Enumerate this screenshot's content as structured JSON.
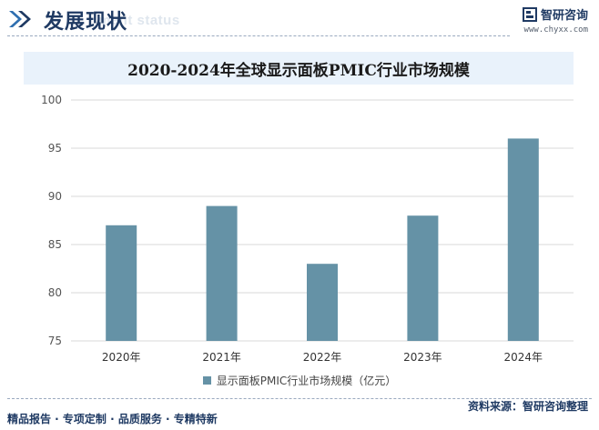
{
  "header": {
    "title": "发展现状",
    "subtitle": "ment status",
    "brand_name": "智研咨询",
    "brand_url": "www.chyxx.com"
  },
  "legend": {
    "label": "显示面板PMIC行业市场规模（亿元）"
  },
  "footer": {
    "left": "精品报告 · 专项定制 · 品质服务 · 专精特新",
    "right": "资料来源：智研咨询整理"
  },
  "colors": {
    "bar": "#6592a6",
    "title_bg": "#e9f2fb",
    "brand": "#1f3a63",
    "grid": "#d9d9d9"
  },
  "chart_data": {
    "type": "bar",
    "title": "2020-2024年全球显示面板PMIC行业市场规模",
    "categories": [
      "2020年",
      "2021年",
      "2022年",
      "2023年",
      "2024年"
    ],
    "series": [
      {
        "name": "显示面板PMIC行业市场规模（亿元）",
        "values": [
          87,
          89,
          83,
          88,
          96
        ]
      }
    ],
    "xlabel": "",
    "ylabel": "",
    "ylim": [
      75,
      100
    ],
    "yticks": [
      75,
      80,
      85,
      90,
      95,
      100
    ],
    "grid": true,
    "legend_position": "bottom"
  }
}
